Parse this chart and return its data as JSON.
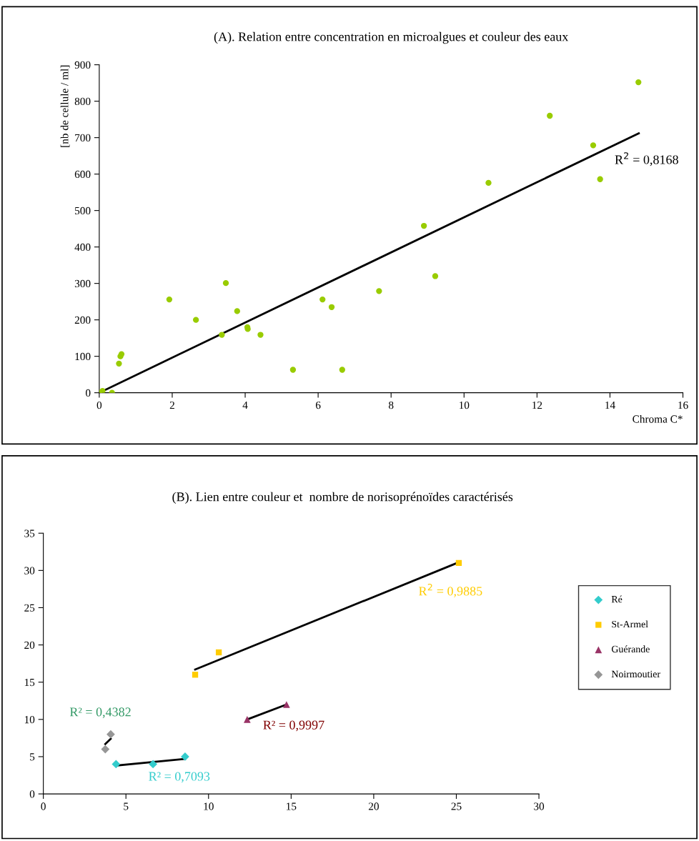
{
  "chart_data": [
    {
      "type": "scatter",
      "title": "(A). Relation entre concentration en microalgues et couleur des eaux",
      "xlabel": "Chroma C*",
      "ylabel": "[nb de cellule / ml]",
      "xlim": [
        0,
        16
      ],
      "xticks": [
        0,
        2,
        4,
        6,
        8,
        10,
        12,
        14,
        16
      ],
      "ylim": [
        0,
        900
      ],
      "yticks": [
        0,
        100,
        200,
        300,
        400,
        500,
        600,
        700,
        800,
        900
      ],
      "grid": false,
      "legend": false,
      "series": [
        {
          "marker": "circle",
          "color": "#99cc00",
          "x": [
            0,
            0.09,
            0.35,
            0.54,
            0.58,
            0.61,
            1.92,
            2.65,
            3.36,
            3.47,
            3.78,
            4.06,
            4.07,
            4.42,
            5.31,
            6.12,
            6.37,
            6.66,
            7.67,
            8.9,
            9.21,
            10.67,
            12.35,
            13.54,
            13.73,
            14.78
          ],
          "values": [
            0,
            5,
            0,
            80,
            100,
            106,
            256,
            200,
            159,
            301,
            224,
            180,
            175,
            159,
            63,
            256,
            235,
            63,
            279,
            458,
            320,
            576,
            760,
            679,
            586,
            852
          ]
        },
        {
          "type": "line",
          "color": "#000000",
          "x": [
            0,
            14.79
          ],
          "values": [
            0,
            712
          ]
        }
      ],
      "annotations": [
        "R$^{2}$ = 0,8168"
      ]
    },
    {
      "type": "scatter",
      "title": "(B). Lien entre couleur et  nombre de norisoprénoïdes caractérisés",
      "xlim": [
        0,
        30
      ],
      "xticks": [
        0,
        5,
        10,
        15,
        20,
        25,
        30
      ],
      "ylim": [
        0,
        35
      ],
      "yticks": [
        0,
        5,
        10,
        15,
        20,
        25,
        30,
        35
      ],
      "grid": false,
      "legend": "right",
      "series": [
        {
          "name": "Ré",
          "marker": "diamond",
          "color": "#33cccc",
          "x": [
            4.4,
            6.64,
            8.58
          ],
          "values": [
            4,
            4,
            5
          ]
        },
        {
          "name": "St-Armel",
          "marker": "square",
          "color": "#ffcc00",
          "x": [
            9.19,
            10.62,
            25.15
          ],
          "values": [
            16,
            19,
            31
          ]
        },
        {
          "name": "Guérande",
          "marker": "triangle",
          "color": "#993366",
          "x": [
            12.34,
            14.72
          ],
          "values": [
            10,
            12
          ]
        },
        {
          "name": "Noirmoutier",
          "marker": "diamond",
          "color": "#969696",
          "x": [
            3.75,
            4.08
          ],
          "values": [
            6,
            8
          ]
        },
        {
          "type": "line",
          "color": "#000000",
          "x": [
            4.4,
            8.58
          ],
          "values": [
            3.8,
            4.7
          ]
        },
        {
          "type": "line",
          "color": "#000000",
          "x": [
            9.19,
            25.15
          ],
          "values": [
            16.7,
            31.1
          ]
        },
        {
          "type": "line",
          "color": "#000000",
          "x": [
            12.34,
            14.72
          ],
          "values": [
            10,
            12
          ]
        },
        {
          "type": "line",
          "color": "#000000",
          "x": [
            3.75,
            4.08
          ],
          "values": [
            6.7,
            7.4
          ]
        }
      ],
      "annotations": [
        "R² = 0,4382",
        "R² = 0,7093",
        "R$^{2}$ = 0,9885",
        "R² = 0,9997"
      ]
    }
  ]
}
